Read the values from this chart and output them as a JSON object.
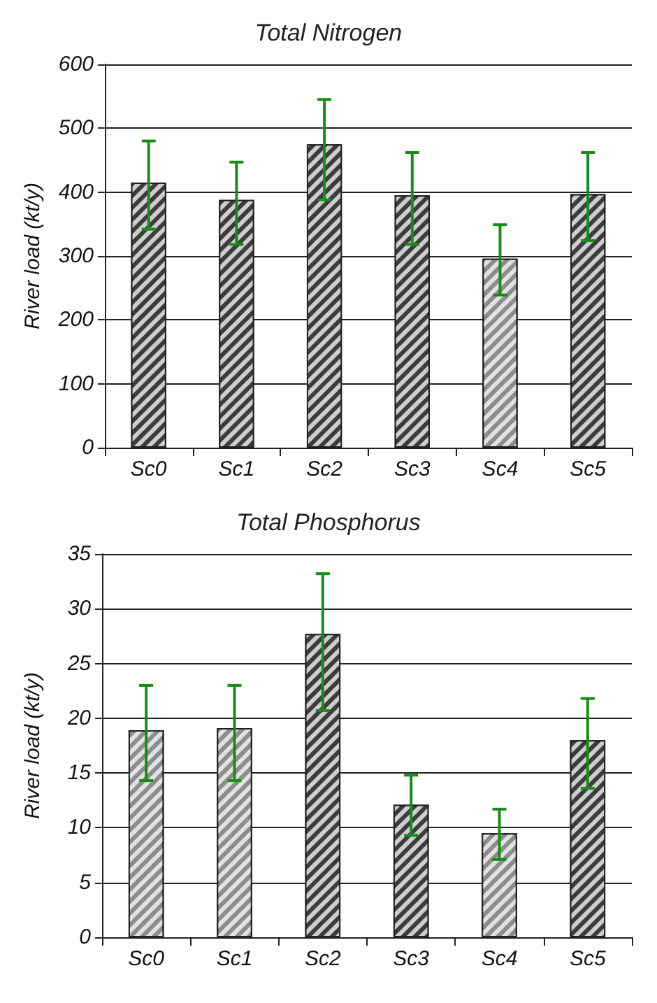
{
  "chart_data": [
    {
      "type": "bar",
      "title": "Total Nitrogen",
      "ylabel": "River load (kt/y)",
      "categories": [
        "Sc0",
        "Sc1",
        "Sc2",
        "Sc3",
        "Sc4",
        "Sc5"
      ],
      "values": [
        415,
        388,
        475,
        395,
        296,
        397
      ],
      "errors": [
        [
          342,
          480
        ],
        [
          318,
          447
        ],
        [
          388,
          545
        ],
        [
          318,
          462
        ],
        [
          239,
          349
        ],
        [
          324,
          462
        ]
      ],
      "colors": [
        "#3c3c3c",
        "#3c3c3c",
        "#3c3c3c",
        "#3c3c3c",
        "#8c8c8c",
        "#3c3c3c"
      ],
      "ylim": [
        0,
        600
      ],
      "yticks": [
        0,
        100,
        200,
        300,
        400,
        500,
        600
      ],
      "grid": "y"
    },
    {
      "type": "bar",
      "title": "Total Phosphorus",
      "ylabel": "River load (kt/y)",
      "categories": [
        "Sc0",
        "Sc1",
        "Sc2",
        "Sc3",
        "Sc4",
        "Sc5"
      ],
      "values": [
        18.9,
        19.1,
        27.7,
        12.1,
        9.5,
        18.0
      ],
      "errors": [
        [
          14.3,
          23.0
        ],
        [
          14.3,
          23.0
        ],
        [
          20.7,
          33.2
        ],
        [
          9.3,
          14.8
        ],
        [
          7.1,
          11.7
        ],
        [
          13.6,
          21.8
        ]
      ],
      "colors": [
        "#8c8c8c",
        "#8c8c8c",
        "#3c3c3c",
        "#3c3c3c",
        "#8c8c8c",
        "#3c3c3c"
      ],
      "ylim": [
        0,
        35
      ],
      "yticks": [
        0,
        5,
        10,
        15,
        20,
        25,
        30,
        35
      ],
      "grid": "y"
    }
  ]
}
